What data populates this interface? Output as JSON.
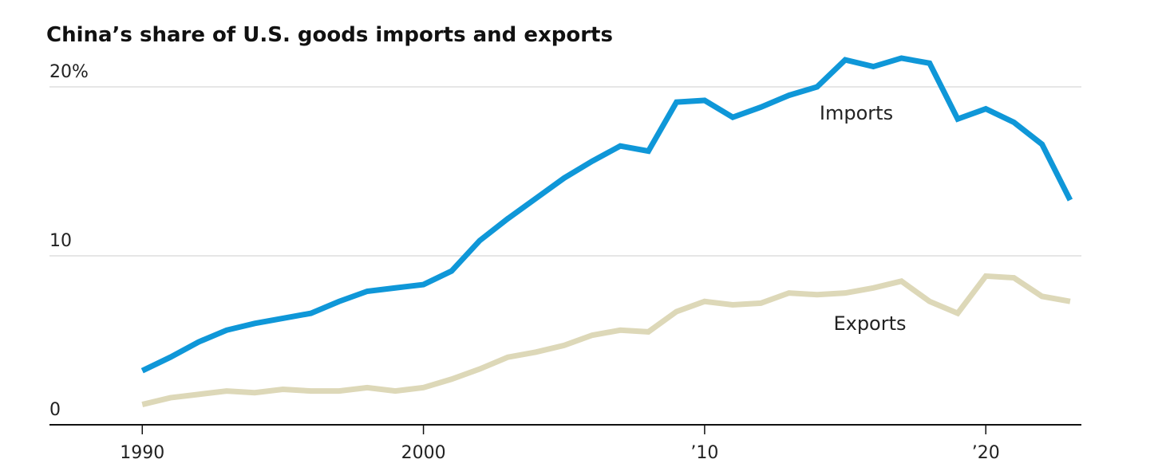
{
  "chart_data": {
    "type": "line",
    "title": "China’s share of U.S. goods imports and exports",
    "x": [
      1990,
      1991,
      1992,
      1993,
      1994,
      1995,
      1996,
      1997,
      1998,
      1999,
      2000,
      2001,
      2002,
      2003,
      2004,
      2005,
      2006,
      2007,
      2008,
      2009,
      2010,
      2011,
      2012,
      2013,
      2014,
      2015,
      2016,
      2017,
      2018,
      2019,
      2020,
      2021,
      2022,
      2023
    ],
    "series": [
      {
        "name": "Imports",
        "color": "#0f97d8",
        "values": [
          3.2,
          4.0,
          4.9,
          5.6,
          6.0,
          6.3,
          6.6,
          7.3,
          7.9,
          8.1,
          8.3,
          9.1,
          10.9,
          12.2,
          13.4,
          14.6,
          15.6,
          16.5,
          16.2,
          19.1,
          19.2,
          18.2,
          18.8,
          19.5,
          20.0,
          21.6,
          21.2,
          21.7,
          21.4,
          18.1,
          18.7,
          17.9,
          16.6,
          13.3
        ]
      },
      {
        "name": "Exports",
        "color": "#ddd8b8",
        "values": [
          1.2,
          1.6,
          1.8,
          2.0,
          1.9,
          2.1,
          2.0,
          2.0,
          2.2,
          2.0,
          2.2,
          2.7,
          3.3,
          4.0,
          4.3,
          4.7,
          5.3,
          5.6,
          5.5,
          6.7,
          7.3,
          7.1,
          7.2,
          7.8,
          7.7,
          7.8,
          8.1,
          8.5,
          7.3,
          6.6,
          8.8,
          8.7,
          7.6,
          7.3
        ]
      }
    ],
    "xlim": [
      1986.7,
      2023.4
    ],
    "xticks": [
      1990,
      2000,
      {
        "value": 2010,
        "label": "’10"
      },
      {
        "value": 2020,
        "label": "’20"
      }
    ],
    "ylim": [
      0,
      22
    ],
    "yticks": [
      0,
      10,
      {
        "value": 20,
        "label": "20%"
      }
    ],
    "grid": true
  }
}
